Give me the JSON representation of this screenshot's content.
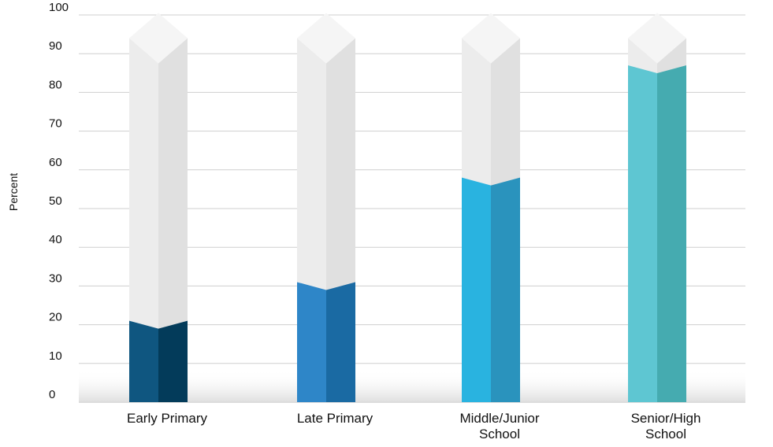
{
  "chart_data": {
    "type": "bar",
    "title": "",
    "xlabel": "",
    "ylabel": "Percent",
    "ylim": [
      0,
      100
    ],
    "yticks": [
      0,
      10,
      20,
      30,
      40,
      50,
      60,
      70,
      80,
      90,
      100
    ],
    "grid": true,
    "categories": [
      {
        "lines": [
          "Early Primary"
        ]
      },
      {
        "lines": [
          "Late Primary"
        ]
      },
      {
        "lines": [
          "Middle/Junior",
          "School"
        ]
      },
      {
        "lines": [
          "Senior/High",
          "School"
        ]
      }
    ],
    "values": [
      21,
      31,
      58,
      87
    ],
    "background_max": 94,
    "colors": [
      {
        "front": "#0f5680",
        "side": "#033b5a"
      },
      {
        "front": "#2e86c8",
        "side": "#1a6aa3"
      },
      {
        "front": "#29b3e0",
        "side": "#2a93bd"
      },
      {
        "front": "#5ec6d2",
        "side": "#45abb0"
      }
    ],
    "background_colors": {
      "front": "#ececec",
      "side": "#e0e0e0",
      "top": "#f5f5f5"
    },
    "gridline_color": "#cfcfcf"
  }
}
